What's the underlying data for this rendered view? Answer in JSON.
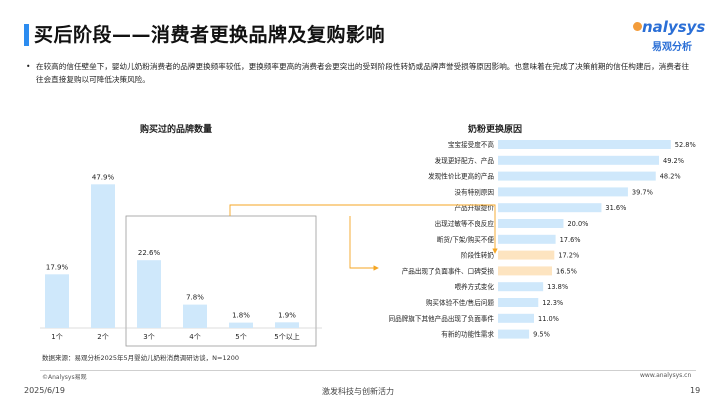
{
  "slide": {
    "title": "买后阶段——消费者更换品牌及复购影响",
    "logo_main": "nalysys",
    "logo_sub": "易观分析",
    "bullet": "在较高的信任壁垒下，婴幼儿奶粉消费者的品牌更换频率较低，更换频率更高的消费者会更突出的受到阶段性转奶或品牌声誉受损等原因影响。也意味着在完成了决策前期的信任构建后，消费者往往会直接复购以可降低决策风险。",
    "source": "数据来源：易观分析2025年5月婴幼儿奶粉消费调研访谈，N=1200",
    "copyright": "©Analysys易观",
    "website": "www.analysys.cn",
    "date": "2025/6/19",
    "slogan": "激发科技与创新活力",
    "page_number": "19"
  },
  "chart_data": [
    {
      "type": "bar",
      "title": "购买过的品牌数量",
      "categories": [
        "1个",
        "2个",
        "3个",
        "4个",
        "5个",
        "5个以上"
      ],
      "values": [
        17.9,
        47.9,
        22.6,
        7.8,
        1.8,
        1.9
      ],
      "labels": [
        "17.9%",
        "47.9%",
        "22.6%",
        "7.8%",
        "1.8%",
        "1.9%"
      ],
      "ylim": [
        0,
        50
      ],
      "unit": "%",
      "bar_color": "#cfe8fb",
      "highlight_box_categories": [
        "3个",
        "4个",
        "5个",
        "5个以上"
      ]
    },
    {
      "type": "bar",
      "orientation": "horizontal",
      "title": "奶粉更换原因",
      "categories": [
        "宝宝接受度不高",
        "发现更好配方、产品",
        "发现性价比更高的产品",
        "没有特别原因",
        "产品升级提价",
        "出现过敏等不良反应",
        "断货/下架/购买不便",
        "阶段性转奶",
        "产品出现了负面事件、口碑受损",
        "喂养方式变化",
        "购买体验不佳/售后问题",
        "同品牌旗下其他产品出现了负面事件",
        "有新的功能性需求"
      ],
      "values": [
        52.8,
        49.2,
        48.2,
        39.7,
        31.6,
        20.0,
        17.6,
        17.2,
        16.5,
        13.8,
        12.3,
        11.0,
        9.5
      ],
      "labels": [
        "52.8%",
        "49.2%",
        "48.2%",
        "39.7%",
        "31.6%",
        "20.0%",
        "17.6%",
        "17.2%",
        "16.5%",
        "13.8%",
        "12.3%",
        "11.0%",
        "9.5%"
      ],
      "xlim": [
        0,
        55
      ],
      "unit": "%",
      "bar_color": "#cfe8fb",
      "highlight_color": "#fde4c0",
      "highlight_categories": [
        "阶段性转奶",
        "产品出现了负面事件、口碑受损"
      ],
      "arrow_color": "#f5a623"
    }
  ]
}
